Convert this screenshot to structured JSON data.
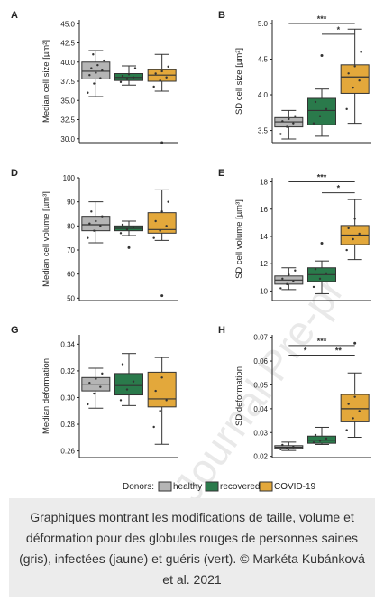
{
  "watermark": "Journal Pre-pr",
  "legend": {
    "title": "Donors:",
    "entries": [
      {
        "label": "healthy",
        "color": "#b5b5b5"
      },
      {
        "label": "recovered",
        "color": "#2a7a4b"
      },
      {
        "label": "COVID-19",
        "color": "#e3a83b"
      }
    ]
  },
  "caption": "Graphiques montrant les modifications de taille, volume et déformation pour des globules rouges de personnes saines (gris), infectées (jaune) et guéris (vert). © Markéta Kubánková et al. 2021",
  "chart_data": [
    {
      "panel": "A",
      "type": "box",
      "ylabel": "Median cell size [µm²]",
      "ylim": [
        29.5,
        45.5
      ],
      "yticks": [
        30.0,
        32.5,
        35.0,
        37.5,
        40.0,
        42.5,
        45.0
      ],
      "tick_decimals": 1,
      "grid": false,
      "groups": [
        {
          "name": "healthy",
          "whisker_low": 35.5,
          "q1": 37.8,
          "median": 38.8,
          "q3": 40.0,
          "whisker_high": 41.5,
          "points": [
            36.0,
            37.2,
            37.9,
            38.3,
            38.6,
            38.9,
            39.2,
            39.6,
            40.2,
            41.0
          ],
          "outliers": []
        },
        {
          "name": "recovered",
          "whisker_low": 37.0,
          "q1": 37.6,
          "median": 38.0,
          "q3": 38.5,
          "whisker_high": 39.5,
          "points": [
            37.4,
            37.8,
            38.0,
            38.2,
            38.4,
            39.2
          ],
          "outliers": []
        },
        {
          "name": "COVID-19",
          "whisker_low": 36.2,
          "q1": 37.5,
          "median": 38.3,
          "q3": 39.0,
          "whisker_high": 41.0,
          "points": [
            36.8,
            37.6,
            38.0,
            38.5,
            38.8,
            39.4
          ],
          "outliers": [
            29.5
          ]
        }
      ],
      "significance": []
    },
    {
      "panel": "B",
      "type": "box",
      "ylabel": "SD cell size [µm²]",
      "ylim": [
        3.33,
        5.05
      ],
      "yticks": [
        3.5,
        4.0,
        4.5,
        5.0
      ],
      "tick_decimals": 1,
      "grid": false,
      "groups": [
        {
          "name": "healthy",
          "whisker_low": 3.38,
          "q1": 3.55,
          "median": 3.62,
          "q3": 3.68,
          "whisker_high": 3.78,
          "points": [
            3.45,
            3.55,
            3.6,
            3.63,
            3.66,
            3.7
          ],
          "outliers": []
        },
        {
          "name": "recovered",
          "whisker_low": 3.42,
          "q1": 3.58,
          "median": 3.78,
          "q3": 3.95,
          "whisker_high": 4.08,
          "points": [
            3.6,
            3.7,
            3.8,
            3.9
          ],
          "outliers": [
            4.55
          ]
        },
        {
          "name": "COVID-19",
          "whisker_low": 3.6,
          "q1": 4.02,
          "median": 4.25,
          "q3": 4.42,
          "whisker_high": 4.92,
          "points": [
            3.8,
            4.1,
            4.2,
            4.3,
            4.4,
            4.6
          ],
          "outliers": []
        }
      ],
      "significance": [
        {
          "from": 0,
          "to": 2,
          "label": "***",
          "y": 5.0
        },
        {
          "from": 1,
          "to": 2,
          "label": "*",
          "y": 4.85
        }
      ]
    },
    {
      "panel": "D",
      "type": "box",
      "ylabel": "Median cell volume [µm³]",
      "ylim": [
        49,
        100
      ],
      "yticks": [
        50,
        60,
        70,
        80,
        90,
        100
      ],
      "tick_decimals": 0,
      "grid": false,
      "groups": [
        {
          "name": "healthy",
          "whisker_low": 73,
          "q1": 78,
          "median": 80.5,
          "q3": 84,
          "whisker_high": 90,
          "points": [
            75,
            78,
            80,
            81,
            82,
            84,
            86
          ],
          "outliers": []
        },
        {
          "name": "recovered",
          "whisker_low": 76,
          "q1": 78,
          "median": 79,
          "q3": 80,
          "whisker_high": 82,
          "points": [
            77,
            78.5,
            79.5,
            80.5
          ],
          "outliers": [
            71
          ]
        },
        {
          "name": "COVID-19",
          "whisker_low": 74,
          "q1": 77,
          "median": 78.5,
          "q3": 85.5,
          "whisker_high": 95,
          "points": [
            75,
            78,
            80,
            82,
            86,
            90
          ],
          "outliers": [
            51
          ]
        }
      ],
      "significance": []
    },
    {
      "panel": "E",
      "type": "box",
      "ylabel": "SD cell volume [µm³]",
      "ylim": [
        9.3,
        18.3
      ],
      "yticks": [
        10,
        12,
        14,
        16,
        18
      ],
      "tick_decimals": 0,
      "grid": false,
      "groups": [
        {
          "name": "healthy",
          "whisker_low": 10.1,
          "q1": 10.5,
          "median": 10.8,
          "q3": 11.1,
          "whisker_high": 11.7,
          "points": [
            10.2,
            10.5,
            10.7,
            10.9,
            11.2,
            11.5
          ],
          "outliers": []
        },
        {
          "name": "recovered",
          "whisker_low": 9.8,
          "q1": 10.7,
          "median": 11.2,
          "q3": 11.7,
          "whisker_high": 12.2,
          "points": [
            10.3,
            10.9,
            11.3,
            11.6
          ],
          "outliers": [
            13.5
          ]
        },
        {
          "name": "COVID-19",
          "whisker_low": 12.3,
          "q1": 13.4,
          "median": 14.1,
          "q3": 14.8,
          "whisker_high": 16.7,
          "points": [
            13.0,
            13.8,
            14.2,
            14.6,
            15.3
          ],
          "outliers": []
        }
      ],
      "significance": [
        {
          "from": 0,
          "to": 2,
          "label": "***",
          "y": 18.0
        },
        {
          "from": 1,
          "to": 2,
          "label": "*",
          "y": 17.2
        }
      ]
    },
    {
      "panel": "G",
      "type": "box",
      "ylabel": "Median deformation",
      "ylim": [
        0.255,
        0.347
      ],
      "yticks": [
        0.26,
        0.28,
        0.3,
        0.32,
        0.34
      ],
      "tick_decimals": 2,
      "grid": false,
      "groups": [
        {
          "name": "healthy",
          "whisker_low": 0.292,
          "q1": 0.305,
          "median": 0.31,
          "q3": 0.315,
          "whisker_high": 0.322,
          "points": [
            0.295,
            0.303,
            0.308,
            0.311,
            0.314,
            0.318
          ],
          "outliers": []
        },
        {
          "name": "recovered",
          "whisker_low": 0.294,
          "q1": 0.302,
          "median": 0.309,
          "q3": 0.318,
          "whisker_high": 0.333,
          "points": [
            0.298,
            0.306,
            0.312,
            0.325
          ],
          "outliers": []
        },
        {
          "name": "COVID-19",
          "whisker_low": 0.265,
          "q1": 0.293,
          "median": 0.299,
          "q3": 0.319,
          "whisker_high": 0.33,
          "points": [
            0.278,
            0.29,
            0.298,
            0.305,
            0.315
          ],
          "outliers": []
        }
      ],
      "significance": []
    },
    {
      "panel": "H",
      "type": "box",
      "ylabel": "SD deformation",
      "ylim": [
        0.0195,
        0.071
      ],
      "yticks": [
        0.02,
        0.03,
        0.04,
        0.05,
        0.06,
        0.07
      ],
      "tick_decimals": 2,
      "grid": false,
      "groups": [
        {
          "name": "healthy",
          "whisker_low": 0.0225,
          "q1": 0.0233,
          "median": 0.0238,
          "q3": 0.0245,
          "whisker_high": 0.026,
          "points": [
            0.023,
            0.0235,
            0.024,
            0.0248
          ],
          "outliers": []
        },
        {
          "name": "recovered",
          "whisker_low": 0.025,
          "q1": 0.0255,
          "median": 0.0268,
          "q3": 0.0285,
          "whisker_high": 0.0322,
          "points": [
            0.0258,
            0.0265,
            0.0275,
            0.029
          ],
          "outliers": []
        },
        {
          "name": "COVID-19",
          "whisker_low": 0.028,
          "q1": 0.0345,
          "median": 0.04,
          "q3": 0.046,
          "whisker_high": 0.055,
          "points": [
            0.031,
            0.036,
            0.039,
            0.042,
            0.045
          ],
          "outliers": [
            0.0675
          ]
        }
      ],
      "significance": [
        {
          "from": 0,
          "to": 2,
          "label": "***",
          "y": 0.0665
        },
        {
          "from": 0,
          "to": 1,
          "label": "*",
          "y": 0.0625
        },
        {
          "from": 1,
          "to": 2,
          "label": "**",
          "y": 0.0625
        }
      ]
    }
  ]
}
